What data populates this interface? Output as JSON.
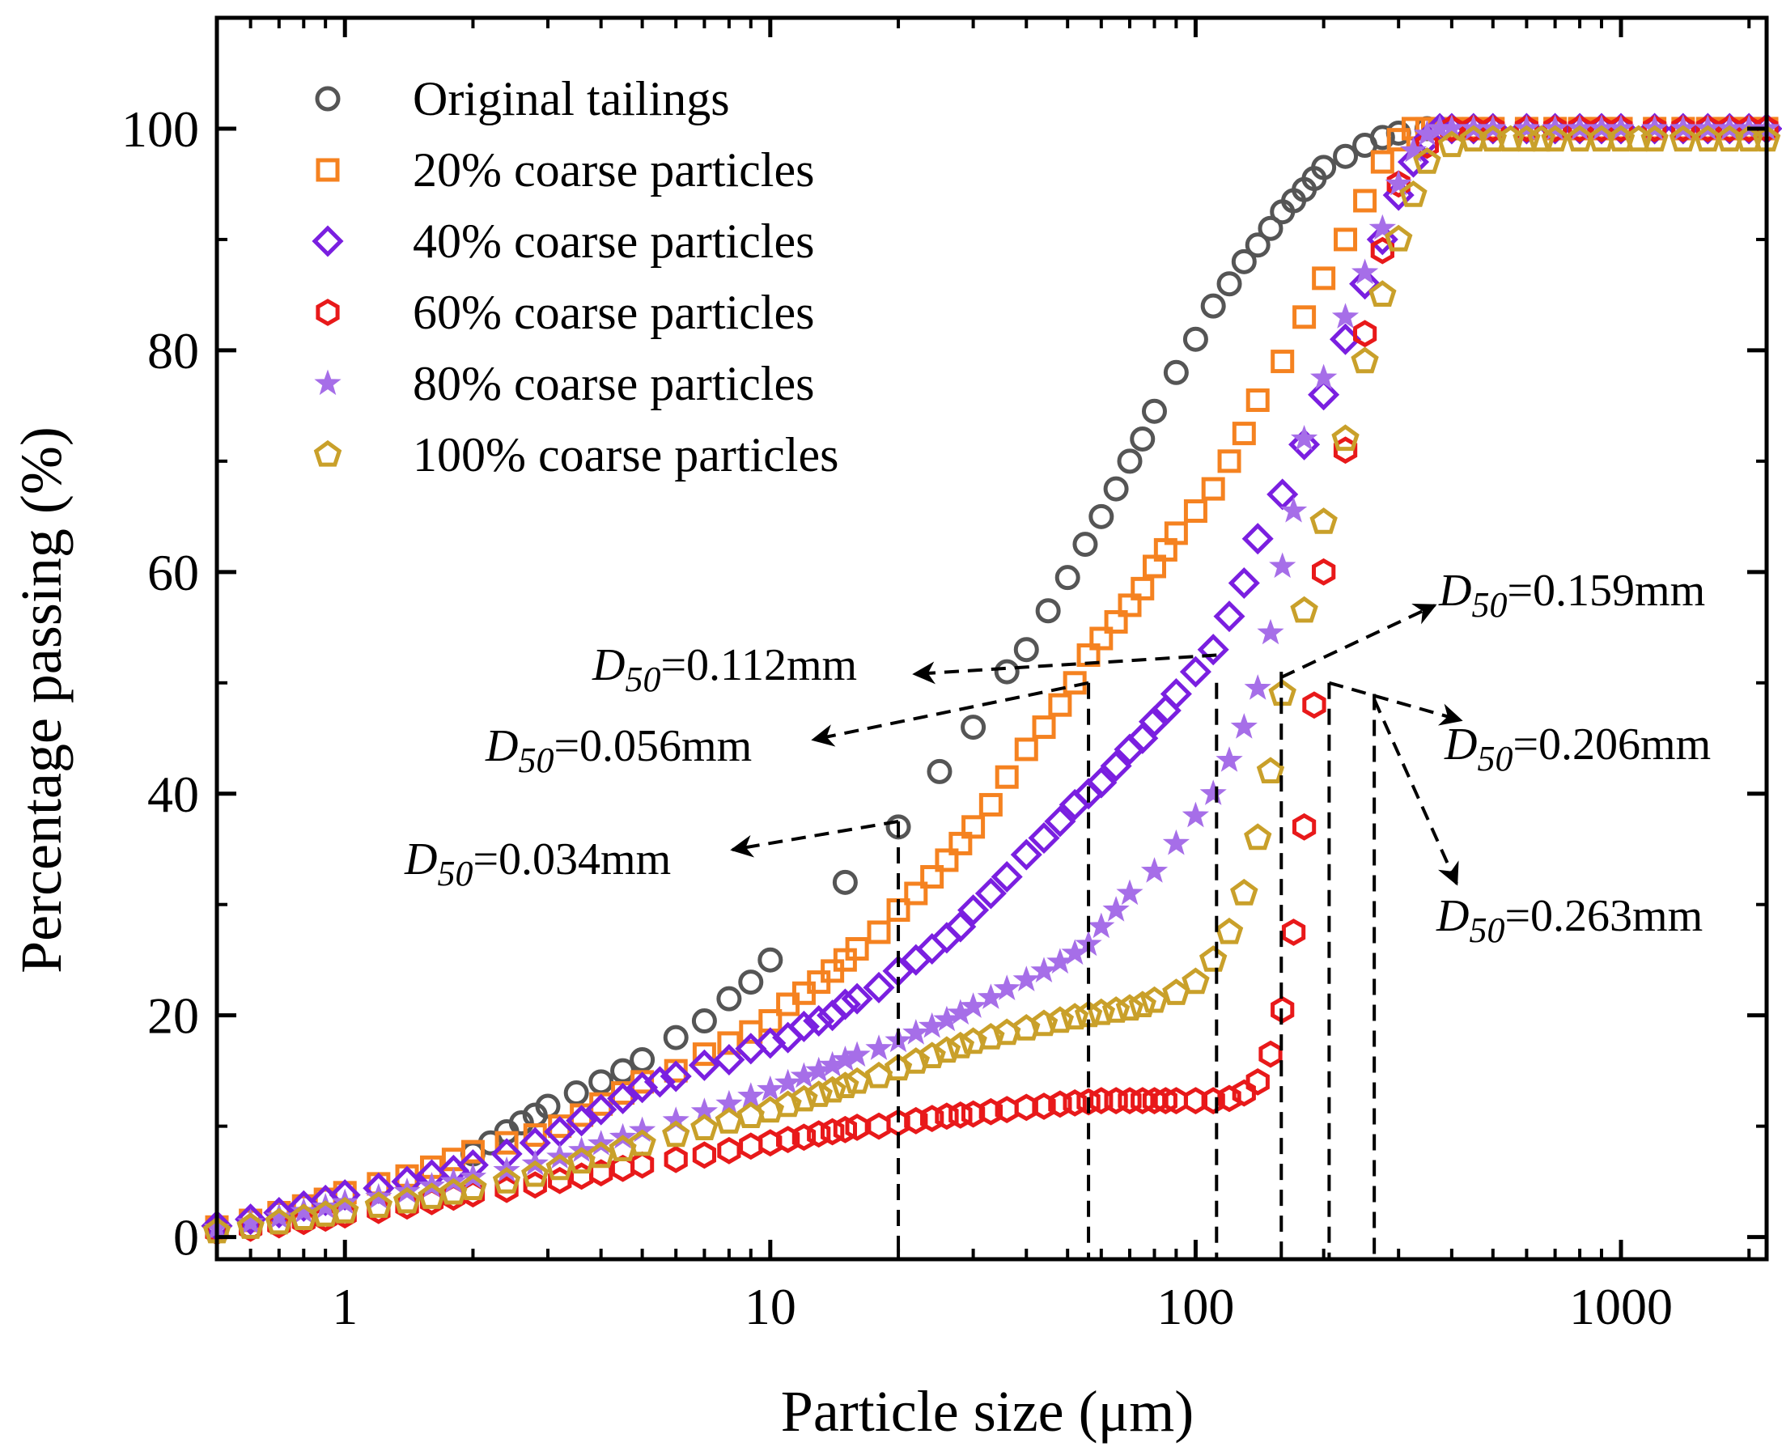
{
  "chart_data": {
    "type": "scatter",
    "title": "",
    "xlabel": "Particle size (μm)",
    "ylabel": "Percentage passing (%)",
    "xscale": "log",
    "xlim": [
      0.5,
      2200
    ],
    "ylim": [
      -2,
      110
    ],
    "x_ticks": [
      1,
      10,
      100,
      1000
    ],
    "x_tick_labels": [
      "1",
      "10",
      "100",
      "1000"
    ],
    "y_ticks": [
      0,
      20,
      40,
      60,
      80,
      100
    ],
    "y_tick_labels": [
      "0",
      "20",
      "40",
      "60",
      "80",
      "100"
    ],
    "legend_position": "top-left",
    "series": [
      {
        "name": "Original tailings",
        "marker": "circle",
        "color": "#555555",
        "x": [
          2,
          2.2,
          2.4,
          2.6,
          2.8,
          3,
          3.5,
          4,
          4.5,
          5,
          6,
          7,
          8,
          9,
          10,
          15,
          20,
          25,
          30,
          36,
          40,
          45,
          50,
          55,
          60,
          65,
          70,
          75,
          80,
          90,
          100,
          110,
          120,
          130,
          140,
          150,
          160,
          170,
          180,
          190,
          200,
          225,
          250,
          275,
          300,
          350,
          400
        ],
        "y": [
          7.5,
          8.5,
          9.5,
          10.3,
          11,
          11.8,
          13,
          14,
          15,
          16,
          18,
          19.5,
          21.5,
          23,
          25,
          32,
          37,
          42,
          46,
          51,
          53,
          56.5,
          59.5,
          62.5,
          65,
          67.5,
          70,
          72,
          74.5,
          78,
          81,
          84,
          86,
          88,
          89.5,
          91,
          92.5,
          93.5,
          94.5,
          95.5,
          96.5,
          97.5,
          98.5,
          99.2,
          99.6,
          100,
          100
        ]
      },
      {
        "name": "20% coarse particles",
        "marker": "square",
        "color": "#f58220",
        "x": [
          0.5,
          0.6,
          0.7,
          0.8,
          0.9,
          1,
          1.2,
          1.4,
          1.6,
          1.8,
          2,
          2.4,
          2.8,
          3.2,
          3.6,
          4,
          4.5,
          5,
          6,
          7,
          8,
          9,
          10,
          11,
          12,
          13,
          14,
          15,
          16,
          18,
          20,
          22,
          24,
          26,
          28,
          30,
          33,
          36,
          40,
          44,
          48,
          52,
          56,
          60,
          65,
          70,
          75,
          80,
          85,
          90,
          100,
          110,
          120,
          130,
          140,
          160,
          180,
          200,
          225,
          250,
          275,
          300,
          325,
          350,
          375,
          400,
          450,
          500,
          600,
          700,
          800,
          900,
          1000,
          1200,
          1400,
          1600,
          1800,
          2000,
          2200
        ],
        "y": [
          0.9,
          1.5,
          2.2,
          2.8,
          3.4,
          4,
          4.8,
          5.5,
          6.3,
          7,
          7.7,
          8.5,
          9.2,
          10,
          11,
          12,
          13,
          14,
          15,
          16.5,
          17.5,
          18.5,
          19.5,
          21,
          22,
          23,
          24,
          25,
          26,
          27.5,
          29.5,
          31,
          32.5,
          34,
          35.5,
          37,
          39,
          41.5,
          44,
          46,
          48,
          50,
          52.5,
          54,
          55.5,
          57,
          58.5,
          60.5,
          62,
          63.5,
          65.5,
          67.5,
          70,
          72.5,
          75.5,
          79,
          83,
          86.5,
          90,
          93.5,
          97,
          99,
          100,
          100,
          100,
          100,
          100,
          100,
          100,
          100,
          100,
          100,
          100,
          100,
          100,
          100,
          100,
          100,
          100
        ]
      },
      {
        "name": "40% coarse particles",
        "marker": "diamond",
        "color": "#7a1fe0",
        "x": [
          0.5,
          0.6,
          0.7,
          0.8,
          0.9,
          1,
          1.2,
          1.4,
          1.6,
          1.8,
          2,
          2.4,
          2.8,
          3.2,
          3.6,
          4,
          4.5,
          5,
          5.5,
          6,
          7,
          8,
          9,
          10,
          11,
          12,
          13,
          14,
          15,
          16,
          18,
          20,
          22,
          24,
          26,
          28,
          30,
          33,
          36,
          40,
          44,
          48,
          52,
          56,
          60,
          65,
          70,
          75,
          80,
          85,
          90,
          100,
          110,
          120,
          130,
          140,
          160,
          180,
          200,
          225,
          250,
          275,
          300,
          325,
          350,
          375,
          400,
          450,
          500,
          600,
          700,
          800,
          900,
          1000,
          1200,
          1400,
          1600,
          1800,
          2000,
          2200
        ],
        "y": [
          1,
          1.6,
          2.2,
          2.8,
          3.3,
          3.8,
          4.4,
          5,
          5.6,
          6,
          6.5,
          7.5,
          8.5,
          9.5,
          10.5,
          11.5,
          12.5,
          13.5,
          14,
          14.5,
          15.5,
          16,
          17,
          17.5,
          18,
          19,
          19.5,
          20,
          21,
          21.5,
          22.5,
          24,
          25,
          26,
          27,
          28,
          29.5,
          31,
          32.5,
          34.5,
          36,
          37.5,
          39,
          40,
          41,
          42.5,
          44,
          45,
          46.5,
          47.5,
          49,
          51,
          53,
          56,
          59,
          63,
          67,
          71.5,
          76,
          81,
          86,
          90,
          94,
          97,
          99,
          100,
          100,
          100,
          100,
          100,
          100,
          100,
          100,
          100,
          100,
          100,
          100,
          100,
          100,
          100
        ]
      },
      {
        "name": "60% coarse particles",
        "marker": "hexagon",
        "color": "#e8191a",
        "x": [
          0.5,
          0.6,
          0.7,
          0.8,
          0.9,
          1,
          1.2,
          1.4,
          1.6,
          1.8,
          2,
          2.4,
          2.8,
          3.2,
          3.6,
          4,
          4.5,
          5,
          6,
          7,
          8,
          9,
          10,
          11,
          12,
          13,
          14,
          15,
          16,
          18,
          20,
          22,
          24,
          26,
          28,
          30,
          33,
          36,
          40,
          44,
          48,
          52,
          56,
          60,
          65,
          70,
          75,
          80,
          85,
          90,
          100,
          110,
          120,
          130,
          140,
          150,
          160,
          170,
          180,
          190,
          200,
          225,
          250,
          275,
          300,
          350,
          400,
          450,
          500,
          600,
          700,
          800,
          900,
          1000,
          1200,
          1400,
          1600,
          1800,
          2000,
          2200
        ],
        "y": [
          0.5,
          0.8,
          1.1,
          1.4,
          1.7,
          2,
          2.4,
          2.8,
          3.2,
          3.6,
          3.9,
          4.3,
          4.7,
          5.1,
          5.5,
          5.8,
          6.2,
          6.5,
          7,
          7.4,
          7.8,
          8.2,
          8.5,
          8.8,
          9,
          9.3,
          9.5,
          9.7,
          9.9,
          10,
          10.3,
          10.5,
          10.7,
          10.9,
          11,
          11.1,
          11.3,
          11.5,
          11.7,
          11.8,
          12,
          12.1,
          12.2,
          12.3,
          12.3,
          12.3,
          12.3,
          12.3,
          12.3,
          12.3,
          12.3,
          12.3,
          12.5,
          13,
          14,
          16.5,
          20.5,
          27.5,
          37,
          48,
          60,
          71,
          81.5,
          89,
          95,
          98.5,
          100,
          100,
          100,
          100,
          100,
          100,
          100,
          100,
          100,
          100,
          100,
          100,
          100,
          100
        ]
      },
      {
        "name": "80% coarse particles",
        "marker": "star",
        "color": "#a66ee8",
        "x": [
          0.5,
          0.6,
          0.7,
          0.8,
          0.9,
          1,
          1.2,
          1.4,
          1.6,
          1.8,
          2,
          2.4,
          2.8,
          3.2,
          3.6,
          4,
          4.5,
          5,
          6,
          7,
          8,
          9,
          10,
          11,
          12,
          13,
          14,
          15,
          16,
          18,
          20,
          22,
          24,
          26,
          28,
          30,
          33,
          36,
          40,
          44,
          48,
          52,
          56,
          60,
          65,
          70,
          80,
          90,
          100,
          110,
          120,
          130,
          140,
          150,
          160,
          170,
          180,
          200,
          225,
          250,
          275,
          300,
          325,
          350,
          375,
          400,
          450,
          500,
          600,
          700,
          800,
          900,
          1000,
          1200,
          1400,
          1600,
          1800,
          2000,
          2200
        ],
        "y": [
          0.8,
          1.3,
          1.8,
          2.3,
          2.7,
          3.1,
          3.6,
          4.1,
          4.6,
          5,
          5.4,
          6,
          6.6,
          7.2,
          7.8,
          8.4,
          9,
          9.6,
          10.5,
          11.3,
          12,
          12.7,
          13.3,
          13.9,
          14.5,
          15,
          15.5,
          16,
          16.4,
          17,
          17.7,
          18.4,
          19,
          19.6,
          20.2,
          20.8,
          21.6,
          22.4,
          23.2,
          24,
          24.8,
          25.6,
          26.4,
          28,
          29.5,
          31,
          33,
          35.5,
          38,
          40,
          43,
          46,
          49.5,
          54.5,
          60.5,
          65.5,
          72,
          77.5,
          83,
          87,
          91,
          95,
          98,
          99.5,
          100,
          100,
          100,
          100,
          100,
          100,
          100,
          100,
          100,
          100,
          100,
          100,
          100,
          100,
          100
        ]
      },
      {
        "name": "100% coarse particles",
        "marker": "pentagon",
        "color": "#c9a02a",
        "x": [
          0.5,
          0.6,
          0.7,
          0.8,
          0.9,
          1,
          1.2,
          1.4,
          1.6,
          1.8,
          2,
          2.4,
          2.8,
          3.2,
          3.6,
          4,
          4.5,
          5,
          6,
          7,
          8,
          9,
          10,
          11,
          12,
          13,
          14,
          15,
          16,
          18,
          20,
          22,
          24,
          26,
          28,
          30,
          33,
          36,
          40,
          44,
          48,
          52,
          56,
          60,
          65,
          70,
          75,
          80,
          90,
          100,
          110,
          120,
          130,
          140,
          150,
          160,
          180,
          200,
          225,
          250,
          275,
          300,
          325,
          350,
          400,
          450,
          500,
          550,
          600,
          650,
          700,
          800,
          900,
          1000,
          1100,
          1200,
          1400,
          1600,
          1800,
          2000,
          2200
        ],
        "y": [
          0.5,
          0.9,
          1.3,
          1.7,
          2,
          2.3,
          2.8,
          3.2,
          3.6,
          4,
          4.4,
          5,
          5.6,
          6.2,
          6.8,
          7.3,
          7.9,
          8.4,
          9.2,
          9.8,
          10.4,
          10.9,
          11.4,
          11.9,
          12.4,
          12.8,
          13.2,
          13.6,
          14,
          14.5,
          15.2,
          15.8,
          16.3,
          16.8,
          17.2,
          17.6,
          18,
          18.4,
          18.8,
          19.2,
          19.5,
          19.8,
          20,
          20.2,
          20.4,
          20.6,
          20.9,
          21.3,
          22,
          23,
          25,
          27.5,
          31,
          36,
          42,
          49,
          56.5,
          64.5,
          72,
          79,
          85,
          90,
          94,
          97,
          98.5,
          99,
          99,
          99,
          99,
          99,
          99,
          99,
          99,
          99,
          99,
          99,
          99,
          99,
          99,
          99,
          99
        ]
      }
    ],
    "annotations": [
      {
        "symbol": "D",
        "subscript": "50",
        "text": "=0.034mm",
        "x": 20
      },
      {
        "symbol": "D",
        "subscript": "50",
        "text": "=0.056mm",
        "x": 56
      },
      {
        "symbol": "D",
        "subscript": "50",
        "text": "=0.112mm",
        "x": 112
      },
      {
        "symbol": "D",
        "subscript": "50",
        "text": "=0.159mm",
        "x": 159
      },
      {
        "symbol": "D",
        "subscript": "50",
        "text": "=0.206mm",
        "x": 206
      },
      {
        "symbol": "D",
        "subscript": "50",
        "text": "=0.263mm",
        "x": 263
      }
    ]
  }
}
